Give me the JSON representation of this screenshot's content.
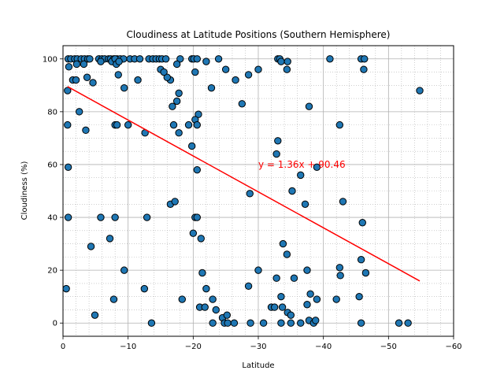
{
  "chart_data": {
    "type": "scatter",
    "title": "Cloudiness at Latitude Positions (Southern Hemisphere)",
    "xlabel": "Latitude",
    "ylabel": "Cloudiness (%)",
    "xlim": [
      0,
      -60
    ],
    "ylim": [
      -5,
      105
    ],
    "x_ticks": [
      0,
      -10,
      -20,
      -30,
      -40,
      -50,
      -60
    ],
    "x_tick_labels": [
      "0",
      "−10",
      "−20",
      "−30",
      "−40",
      "−50",
      "−60"
    ],
    "y_ticks": [
      0,
      20,
      40,
      60,
      80,
      100
    ],
    "y_tick_labels": [
      "0",
      "20",
      "40",
      "60",
      "80",
      "100"
    ],
    "grid": true,
    "minor_grid": true,
    "marker_color": "#1f77b4",
    "marker_edge": "#000000",
    "regression": {
      "equation_label": "y = 1.36x + 90.46",
      "color": "#ff0000",
      "x_start": -0.7,
      "x_end": -54.8,
      "label_x": -30,
      "label_y": 60
    },
    "points": [
      [
        -0.8,
        100
      ],
      [
        -1.2,
        100
      ],
      [
        -1.8,
        100
      ],
      [
        -2.2,
        100
      ],
      [
        -2.8,
        100
      ],
      [
        -3.3,
        100
      ],
      [
        -3.8,
        100
      ],
      [
        -4.1,
        100
      ],
      [
        -5.5,
        100
      ],
      [
        -6.0,
        100
      ],
      [
        -6.4,
        100
      ],
      [
        -7.0,
        100
      ],
      [
        -7.3,
        100
      ],
      [
        -7.8,
        100
      ],
      [
        -8.3,
        100
      ],
      [
        -8.8,
        100
      ],
      [
        -9.3,
        100
      ],
      [
        -10.3,
        100
      ],
      [
        -11.0,
        100
      ],
      [
        -11.8,
        100
      ],
      [
        -13.2,
        100
      ],
      [
        -13.8,
        100
      ],
      [
        -14.3,
        100
      ],
      [
        -14.8,
        100
      ],
      [
        -15.2,
        100
      ],
      [
        -15.8,
        100
      ],
      [
        -18.0,
        100
      ],
      [
        -19.8,
        100
      ],
      [
        -20.1,
        100
      ],
      [
        -20.6,
        100
      ],
      [
        -23.9,
        100
      ],
      [
        -33.0,
        100
      ],
      [
        -33.3,
        100
      ],
      [
        -41.0,
        100
      ],
      [
        -45.8,
        100
      ],
      [
        -46.3,
        100
      ],
      [
        -0.9,
        97
      ],
      [
        -2.1,
        98
      ],
      [
        -3.2,
        98
      ],
      [
        -5.8,
        99
      ],
      [
        -7.5,
        99
      ],
      [
        -8.0,
        100
      ],
      [
        -8.2,
        98
      ],
      [
        -8.6,
        99
      ],
      [
        -16.5,
        92
      ],
      [
        -17.5,
        98
      ],
      [
        -22.0,
        99
      ],
      [
        -33.5,
        99
      ],
      [
        -34.5,
        99
      ],
      [
        -15.0,
        96
      ],
      [
        -20.3,
        95
      ],
      [
        -25.0,
        96
      ],
      [
        -30.0,
        96
      ],
      [
        -34.4,
        96
      ],
      [
        -46.2,
        96
      ],
      [
        -1.5,
        92
      ],
      [
        -2.0,
        92
      ],
      [
        -3.7,
        93
      ],
      [
        -4.6,
        91
      ],
      [
        -8.5,
        94
      ],
      [
        -11.5,
        92
      ],
      [
        -16.0,
        93
      ],
      [
        -26.5,
        92
      ],
      [
        -28.5,
        94
      ],
      [
        -15.5,
        95
      ],
      [
        -0.7,
        88
      ],
      [
        -9.4,
        89
      ],
      [
        -22.8,
        89
      ],
      [
        -54.8,
        88
      ],
      [
        -17.8,
        87
      ],
      [
        -17.5,
        84
      ],
      [
        -16.8,
        82
      ],
      [
        -27.5,
        83
      ],
      [
        -37.8,
        82
      ],
      [
        -2.5,
        80
      ],
      [
        -20.8,
        79
      ],
      [
        -20.3,
        77
      ],
      [
        -0.7,
        75
      ],
      [
        -8.0,
        75
      ],
      [
        -8.3,
        75
      ],
      [
        -10.0,
        75
      ],
      [
        -17.0,
        75
      ],
      [
        -19.3,
        75
      ],
      [
        -20.6,
        75
      ],
      [
        -42.5,
        75
      ],
      [
        -3.5,
        73
      ],
      [
        -12.6,
        72
      ],
      [
        -17.8,
        72
      ],
      [
        -19.8,
        67
      ],
      [
        -33.0,
        69
      ],
      [
        -32.8,
        64
      ],
      [
        -0.8,
        59
      ],
      [
        -20.6,
        58
      ],
      [
        -39.0,
        59
      ],
      [
        -36.5,
        56
      ],
      [
        -35.2,
        50
      ],
      [
        -28.7,
        49
      ],
      [
        -16.5,
        45
      ],
      [
        -17.2,
        46
      ],
      [
        -37.2,
        45
      ],
      [
        -43.0,
        46
      ],
      [
        -0.8,
        40
      ],
      [
        -5.8,
        40
      ],
      [
        -8.0,
        40
      ],
      [
        -12.9,
        40
      ],
      [
        -20.3,
        40
      ],
      [
        -20.6,
        40
      ],
      [
        -46.0,
        38
      ],
      [
        -20.0,
        34
      ],
      [
        -7.2,
        32
      ],
      [
        -21.2,
        32
      ],
      [
        -4.3,
        29
      ],
      [
        -33.8,
        30
      ],
      [
        -34.4,
        26
      ],
      [
        -45.8,
        24
      ],
      [
        -9.4,
        20
      ],
      [
        -30.0,
        20
      ],
      [
        -37.5,
        20
      ],
      [
        -42.5,
        21
      ],
      [
        -21.4,
        19
      ],
      [
        -42.6,
        18
      ],
      [
        -46.5,
        19
      ],
      [
        -32.8,
        17
      ],
      [
        -35.5,
        17
      ],
      [
        -0.5,
        13
      ],
      [
        -12.5,
        13
      ],
      [
        -22.0,
        13
      ],
      [
        -28.5,
        14
      ],
      [
        -38.0,
        11
      ],
      [
        -45.5,
        10
      ],
      [
        -7.8,
        9
      ],
      [
        -18.3,
        9
      ],
      [
        -23.0,
        9
      ],
      [
        -33.5,
        10
      ],
      [
        -39.0,
        9
      ],
      [
        -42.0,
        9
      ],
      [
        -4.9,
        3
      ],
      [
        -21.0,
        6
      ],
      [
        -21.8,
        6
      ],
      [
        -23.5,
        5
      ],
      [
        -32.0,
        6
      ],
      [
        -32.5,
        6
      ],
      [
        -33.7,
        6
      ],
      [
        -34.5,
        4
      ],
      [
        -35.0,
        3
      ],
      [
        -37.5,
        7
      ],
      [
        -24.5,
        2
      ],
      [
        -25.2,
        3
      ],
      [
        -13.6,
        0
      ],
      [
        -23.0,
        0
      ],
      [
        -24.8,
        0
      ],
      [
        -25.3,
        0
      ],
      [
        -26.3,
        0
      ],
      [
        -28.8,
        0
      ],
      [
        -30.8,
        0
      ],
      [
        -33.5,
        0
      ],
      [
        -35.0,
        0
      ],
      [
        -36.5,
        0
      ],
      [
        -37.8,
        1
      ],
      [
        -38.5,
        0
      ],
      [
        -38.8,
        1
      ],
      [
        -45.8,
        0
      ],
      [
        -51.6,
        0
      ],
      [
        -53.0,
        0
      ]
    ]
  }
}
